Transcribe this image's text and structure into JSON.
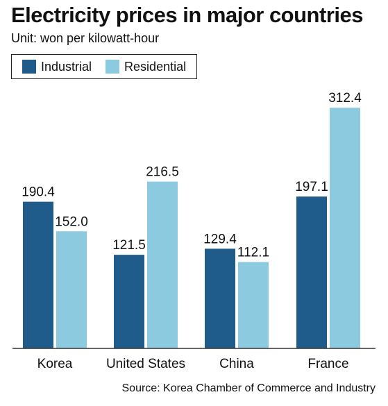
{
  "title": "Electricity prices in major countries",
  "unit": "Unit: won per kilowatt-hour",
  "source": "Source: Korea Chamber of Commerce and Industry",
  "colors": {
    "industrial": "#1f5c8c",
    "residential": "#8ccadf",
    "axis": "#333333"
  },
  "chart_data": {
    "type": "bar",
    "categories": [
      "Korea",
      "United States",
      "China",
      "France"
    ],
    "series": [
      {
        "name": "Industrial",
        "values": [
          190.4,
          121.5,
          129.4,
          197.1
        ]
      },
      {
        "name": "Residential",
        "values": [
          152.0,
          216.5,
          112.1,
          312.4
        ]
      }
    ],
    "value_labels": [
      [
        "190.4",
        "121.5",
        "129.4",
        "197.1"
      ],
      [
        "152.0",
        "216.5",
        "112.1",
        "312.4"
      ]
    ],
    "ylim": [
      0,
      350
    ],
    "grid": false,
    "legend": "top-left"
  }
}
